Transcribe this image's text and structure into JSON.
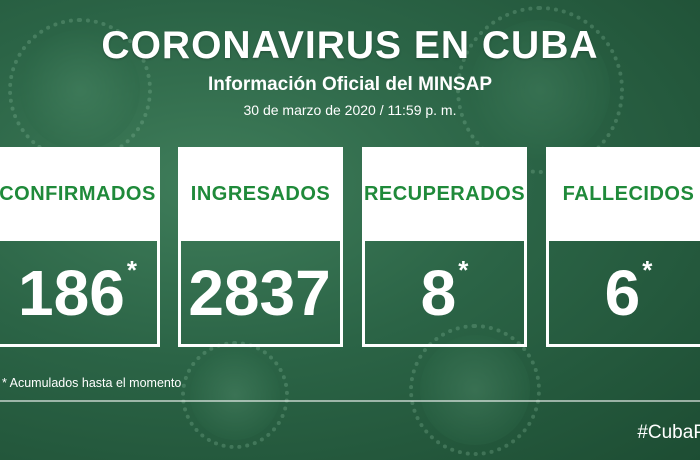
{
  "header": {
    "title": "CORONAVIRUS EN CUBA",
    "subtitle": "Información Oficial del MINSAP",
    "date": "30 de marzo de 2020 / 11:59 p. m."
  },
  "stats": [
    {
      "label": "CONFIRMADOS",
      "value": "186",
      "asterisk": "*"
    },
    {
      "label": "INGRESADOS",
      "value": "2837",
      "asterisk": ""
    },
    {
      "label": "RECUPERADOS",
      "value": "8",
      "asterisk": "*"
    },
    {
      "label": "FALLECIDOS",
      "value": "6",
      "asterisk": "*"
    }
  ],
  "footnote": "* Acumulados hasta el momento",
  "hashtag": "#CubaP",
  "colors": {
    "label_green": "#1f8a3a",
    "background": "#2b6446"
  }
}
